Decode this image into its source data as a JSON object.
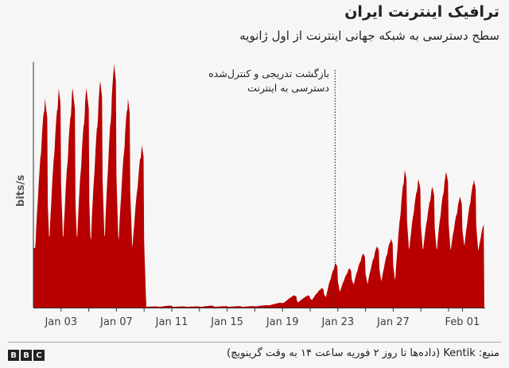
{
  "header": {
    "title": "ترافیک اینترنت ایران",
    "subtitle": "سطح دسترسی به شبکه جهانی اینترنت از اول ژانویه"
  },
  "chart_data": {
    "type": "area",
    "ylabel": "bits/s",
    "y_units": "relative",
    "ylim": [
      0,
      100
    ],
    "xlim_days": [
      "Jan 01",
      "Feb 02"
    ],
    "grid": false,
    "legend": "none",
    "fill_color": "#b80000",
    "days": [
      "Jan 01",
      "Jan 02",
      "Jan 03",
      "Jan 04",
      "Jan 05",
      "Jan 06",
      "Jan 07",
      "Jan 08",
      "Jan 09",
      "Jan 10",
      "Jan 11",
      "Jan 12",
      "Jan 13",
      "Jan 14",
      "Jan 15",
      "Jan 16",
      "Jan 17",
      "Jan 18",
      "Jan 19",
      "Jan 20",
      "Jan 21",
      "Jan 22",
      "Jan 23",
      "Jan 24",
      "Jan 25",
      "Jan 26",
      "Jan 27",
      "Jan 28",
      "Jan 29",
      "Jan 30",
      "Jan 31",
      "Feb 01",
      "Feb 02"
    ],
    "daily_peak": [
      85,
      89,
      89,
      89,
      92,
      99,
      85,
      66,
      0.5,
      0.8,
      0.5,
      0.5,
      0.8,
      0.6,
      0.6,
      0.6,
      1,
      2,
      5,
      5,
      8,
      18,
      16,
      22,
      25,
      28,
      56,
      52,
      49,
      55,
      45,
      52,
      41
    ],
    "daily_min": [
      24,
      25,
      25,
      25,
      24,
      25,
      24,
      22,
      0.3,
      0.3,
      0.3,
      0.3,
      0.3,
      0.3,
      0.3,
      0.3,
      0.5,
      1,
      2,
      2,
      3,
      4,
      6,
      9,
      9,
      10,
      10,
      22,
      22,
      22,
      22,
      24,
      22
    ],
    "x_tick_labels": [
      "Jan 03",
      "Jan 07",
      "Jan 11",
      "Jan 15",
      "Jan 19",
      "Jan 23",
      "Jan 27",
      "Feb 01"
    ],
    "annotation": {
      "date": "Jan 22",
      "line1": "بازگشت تدریجی و کنترل‌شده",
      "line2": "دسترسی به اینترنت"
    }
  },
  "footer": {
    "source": "منبع: Kentik (داده‌ها تا روز ۲ فوریه ساعت ۱۴ به وقت گرینویچ)",
    "logo": "BBC"
  }
}
